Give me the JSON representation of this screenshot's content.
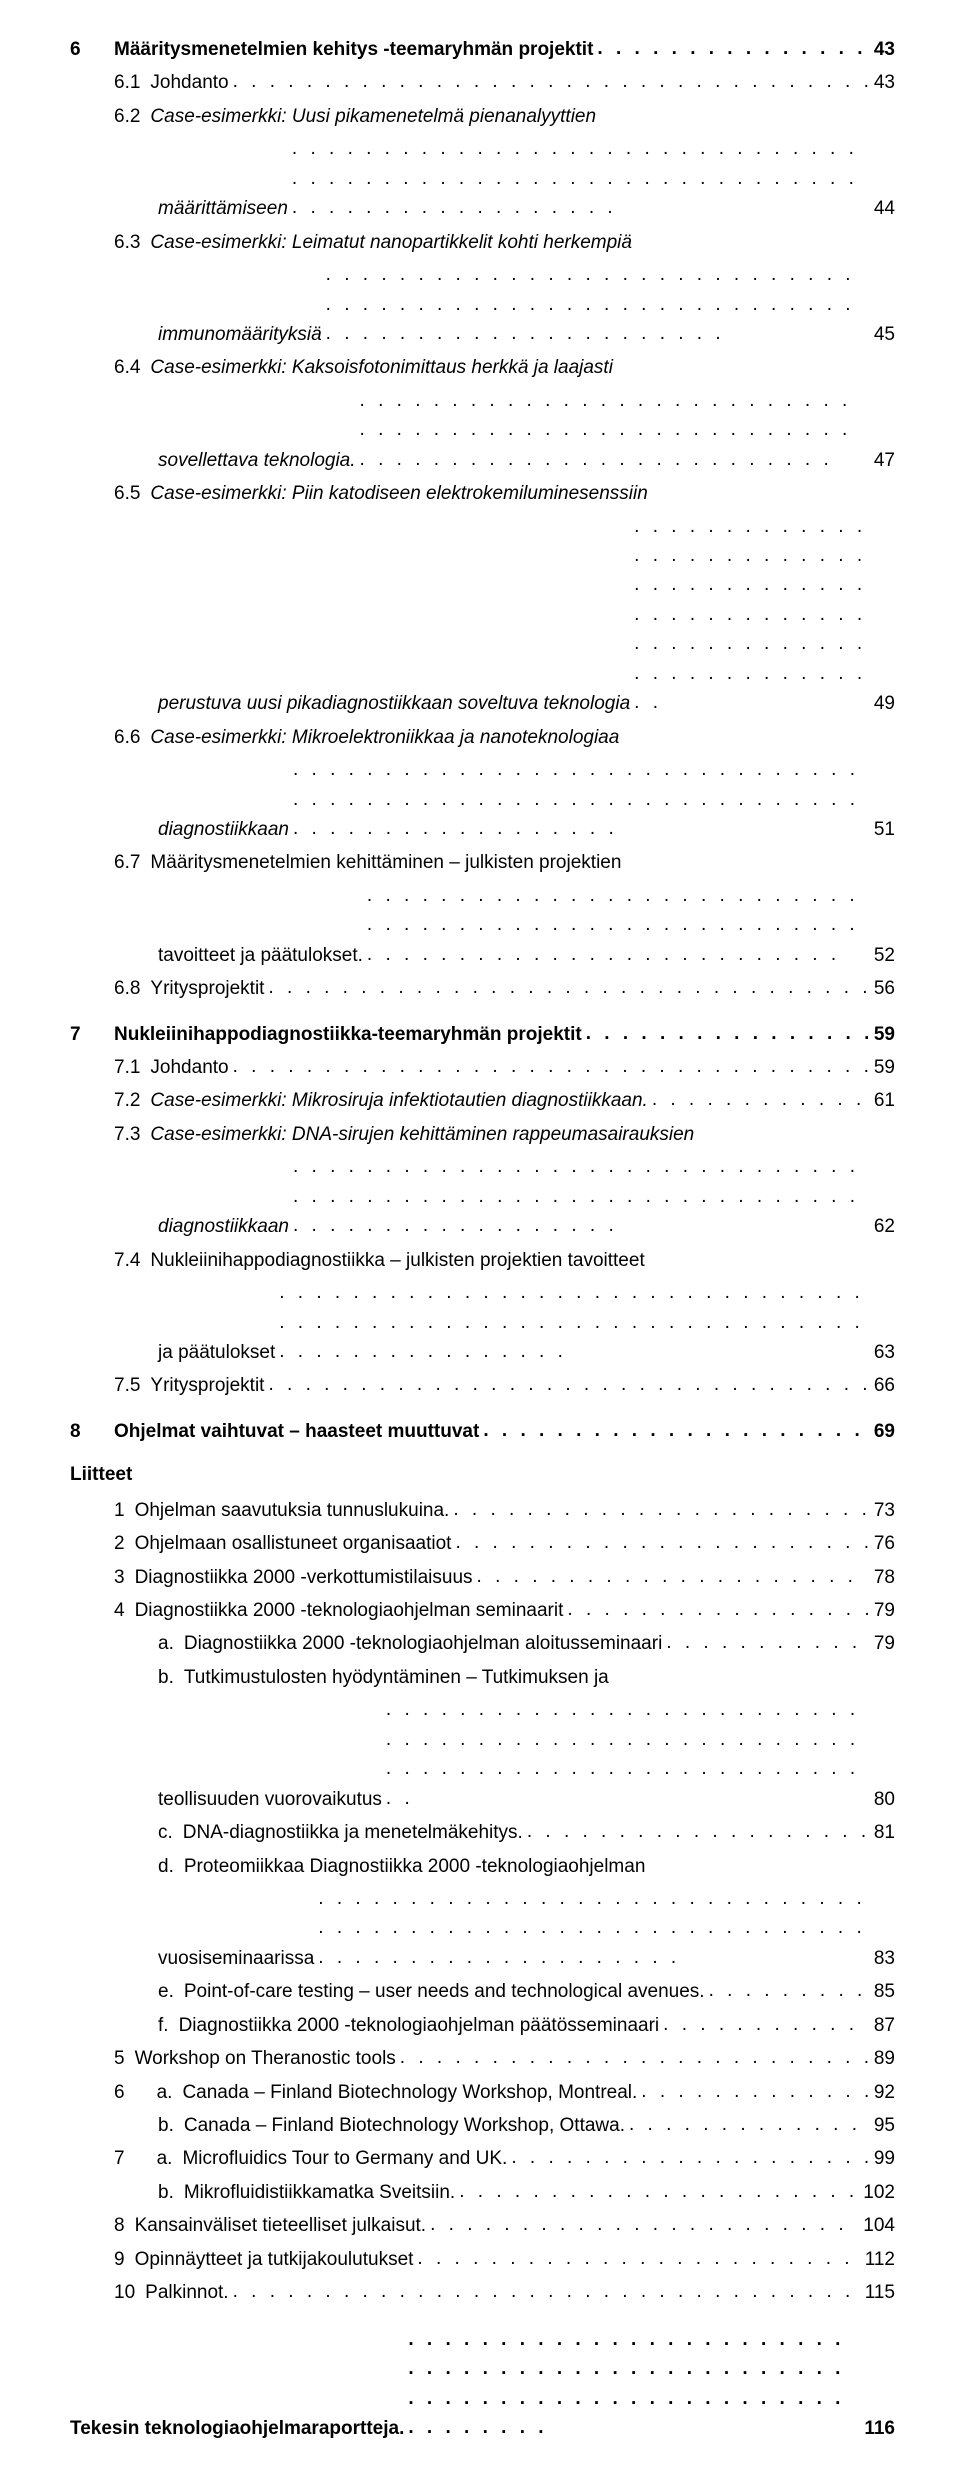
{
  "colors": {
    "text": "#000000",
    "bg": "#ffffff"
  },
  "typography": {
    "family": "Arial",
    "baseSizePt": 14,
    "lineHeight": 1.55
  },
  "dots": ".",
  "toc": [
    {
      "id": "6",
      "level": 0,
      "num": "6",
      "label": "Määritysmenetelmien kehitys -teemaryhmän projektit",
      "page": "43",
      "bold": true,
      "italic": false,
      "topgap": false
    },
    {
      "id": "6-1",
      "level": 1,
      "num": "6.1",
      "label": "Johdanto",
      "page": "43",
      "bold": false,
      "italic": false
    },
    {
      "id": "6-2a",
      "level": 1,
      "num": "6.2",
      "label": "Case-esimerkki: Uusi pikamenetelmä pienanalyyttien",
      "page": "",
      "bold": false,
      "italic": true,
      "nodots": true
    },
    {
      "id": "6-2b",
      "level": 2,
      "num": "",
      "label": "määrittämiseen",
      "page": "44",
      "bold": false,
      "italic": true,
      "cont": true
    },
    {
      "id": "6-3a",
      "level": 1,
      "num": "6.3",
      "label": "Case-esimerkki: Leimatut nanopartikkelit kohti herkempiä",
      "page": "",
      "bold": false,
      "italic": true,
      "nodots": true
    },
    {
      "id": "6-3b",
      "level": 2,
      "num": "",
      "label": "immunomäärityksiä",
      "page": "45",
      "bold": false,
      "italic": true,
      "cont": true
    },
    {
      "id": "6-4a",
      "level": 1,
      "num": "6.4",
      "label": "Case-esimerkki: Kaksoisfotonimittaus herkkä ja laajasti",
      "page": "",
      "bold": false,
      "italic": true,
      "nodots": true
    },
    {
      "id": "6-4b",
      "level": 2,
      "num": "",
      "label": "sovellettava teknologia.",
      "page": "47",
      "bold": false,
      "italic": true,
      "cont": true
    },
    {
      "id": "6-5a",
      "level": 1,
      "num": "6.5",
      "label": "Case-esimerkki: Piin katodiseen elektrokemiluminesenssiin",
      "page": "",
      "bold": false,
      "italic": true,
      "nodots": true
    },
    {
      "id": "6-5b",
      "level": 2,
      "num": "",
      "label": "perustuva uusi pikadiagnostiikkaan soveltuva teknologia",
      "page": "49",
      "bold": false,
      "italic": true,
      "cont": true
    },
    {
      "id": "6-6a",
      "level": 1,
      "num": "6.6",
      "label": "Case-esimerkki: Mikroelektroniikkaa ja nanoteknologiaa",
      "page": "",
      "bold": false,
      "italic": true,
      "nodots": true
    },
    {
      "id": "6-6b",
      "level": 2,
      "num": "",
      "label": "diagnostiikkaan",
      "page": "51",
      "bold": false,
      "italic": true,
      "cont": true
    },
    {
      "id": "6-7a",
      "level": 1,
      "num": "6.7",
      "label": "Määritysmenetelmien kehittäminen – julkisten projektien",
      "page": "",
      "bold": false,
      "italic": false,
      "nodots": true
    },
    {
      "id": "6-7b",
      "level": 2,
      "num": "",
      "label": "tavoitteet ja päätulokset.",
      "page": "52",
      "bold": false,
      "italic": false,
      "cont": true
    },
    {
      "id": "6-8",
      "level": 1,
      "num": "6.8",
      "label": "Yritysprojektit",
      "page": "56",
      "bold": false,
      "italic": false
    },
    {
      "id": "7",
      "level": 0,
      "num": "7",
      "label": "Nukleiinihappodiagnostiikka-teemaryhmän projektit",
      "page": "59",
      "bold": true,
      "italic": false,
      "topgap": true
    },
    {
      "id": "7-1",
      "level": 1,
      "num": "7.1",
      "label": "Johdanto",
      "page": "59",
      "bold": false,
      "italic": false
    },
    {
      "id": "7-2",
      "level": 1,
      "num": "7.2",
      "label": "Case-esimerkki: Mikrosiruja infektiotautien diagnostiikkaan.",
      "page": "61",
      "bold": false,
      "italic": true
    },
    {
      "id": "7-3a",
      "level": 1,
      "num": "7.3",
      "label": "Case-esimerkki: DNA-sirujen kehittäminen rappeumasairauksien",
      "page": "",
      "bold": false,
      "italic": true,
      "nodots": true
    },
    {
      "id": "7-3b",
      "level": 2,
      "num": "",
      "label": "diagnostiikkaan",
      "page": "62",
      "bold": false,
      "italic": true,
      "cont": true
    },
    {
      "id": "7-4a",
      "level": 1,
      "num": "7.4",
      "label": "Nukleiinihappodiagnostiikka – julkisten projektien tavoitteet",
      "page": "",
      "bold": false,
      "italic": false,
      "nodots": true
    },
    {
      "id": "7-4b",
      "level": 2,
      "num": "",
      "label": "ja päätulokset",
      "page": "63",
      "bold": false,
      "italic": false,
      "cont": true
    },
    {
      "id": "7-5",
      "level": 1,
      "num": "7.5",
      "label": "Yritysprojektit",
      "page": "66",
      "bold": false,
      "italic": false
    },
    {
      "id": "8",
      "level": 0,
      "num": "8",
      "label": "Ohjelmat vaihtuvat – haasteet muuttuvat",
      "page": "69",
      "bold": true,
      "italic": false,
      "topgap": true
    }
  ],
  "liitteet": {
    "heading": "Liitteet",
    "items": [
      {
        "id": "L1",
        "level": 1,
        "num": "1",
        "label": "Ohjelman saavutuksia tunnuslukuina.",
        "page": "73"
      },
      {
        "id": "L2",
        "level": 1,
        "num": "2",
        "label": "Ohjelmaan osallistuneet organisaatiot",
        "page": "76"
      },
      {
        "id": "L3",
        "level": 1,
        "num": "3",
        "label": "Diagnostiikka 2000 -verkottumistilaisuus",
        "page": "78"
      },
      {
        "id": "L4",
        "level": 1,
        "num": "4",
        "label": "Diagnostiikka 2000 -teknologiaohjelman seminaarit",
        "page": "79"
      },
      {
        "id": "L4a",
        "level": 2,
        "num": "a.",
        "label": "Diagnostiikka 2000 -teknologiaohjelman aloitusseminaari",
        "page": "79"
      },
      {
        "id": "L4b1",
        "level": 2,
        "num": "b.",
        "label": "Tutkimustulosten hyödyntäminen – Tutkimuksen ja",
        "page": "",
        "nodots": true
      },
      {
        "id": "L4b2",
        "level": 3,
        "num": "",
        "label": "teollisuuden vuorovaikutus",
        "page": "80",
        "cont": true
      },
      {
        "id": "L4c",
        "level": 2,
        "num": "c.",
        "label": "DNA-diagnostiikka ja menetelmäkehitys.",
        "page": "81"
      },
      {
        "id": "L4d1",
        "level": 2,
        "num": "d.",
        "label": "Proteomiikkaa Diagnostiikka 2000 -teknologiaohjelman",
        "page": "",
        "nodots": true
      },
      {
        "id": "L4d2",
        "level": 3,
        "num": "",
        "label": "vuosiseminaarissa",
        "page": "83",
        "cont": true
      },
      {
        "id": "L4e",
        "level": 2,
        "num": "e.",
        "label": "Point-of-care testing – user needs and technological avenues.",
        "page": "85"
      },
      {
        "id": "L4f",
        "level": 2,
        "num": "f.",
        "label": "Diagnostiikka 2000 -teknologiaohjelman päätösseminaari",
        "page": "87"
      },
      {
        "id": "L5",
        "level": 1,
        "num": "5",
        "label": "Workshop on Theranostic tools",
        "page": "89"
      },
      {
        "id": "L6a",
        "level": 1,
        "num": "6",
        "label2num": "a.",
        "label": "Canada – Finland Biotechnology Workshop, Montreal.",
        "page": "92",
        "dualnum": true
      },
      {
        "id": "L6b",
        "level": 2,
        "num": "b.",
        "label": "Canada – Finland Biotechnology Workshop, Ottawa.",
        "page": "95"
      },
      {
        "id": "L7a",
        "level": 1,
        "num": "7",
        "label2num": "a.",
        "label": "Microfluidics Tour to Germany and UK.",
        "page": "99",
        "dualnum": true
      },
      {
        "id": "L7b",
        "level": 2,
        "num": "b.",
        "label": "Mikrofluidistiikkamatka Sveitsiin.",
        "page": "102"
      },
      {
        "id": "L8",
        "level": 1,
        "num": "8",
        "label": "Kansainväliset tieteelliset julkaisut.",
        "page": "104"
      },
      {
        "id": "L9",
        "level": 1,
        "num": "9",
        "label": "Opinnäytteet ja tutkijakoulutukset",
        "page": "112"
      },
      {
        "id": "L10",
        "level": 1,
        "num": "10",
        "label": "Palkinnot.",
        "page": "115"
      }
    ]
  },
  "footer": {
    "label": "Tekesin teknologiaohjelmaraportteja.",
    "page": "116"
  }
}
